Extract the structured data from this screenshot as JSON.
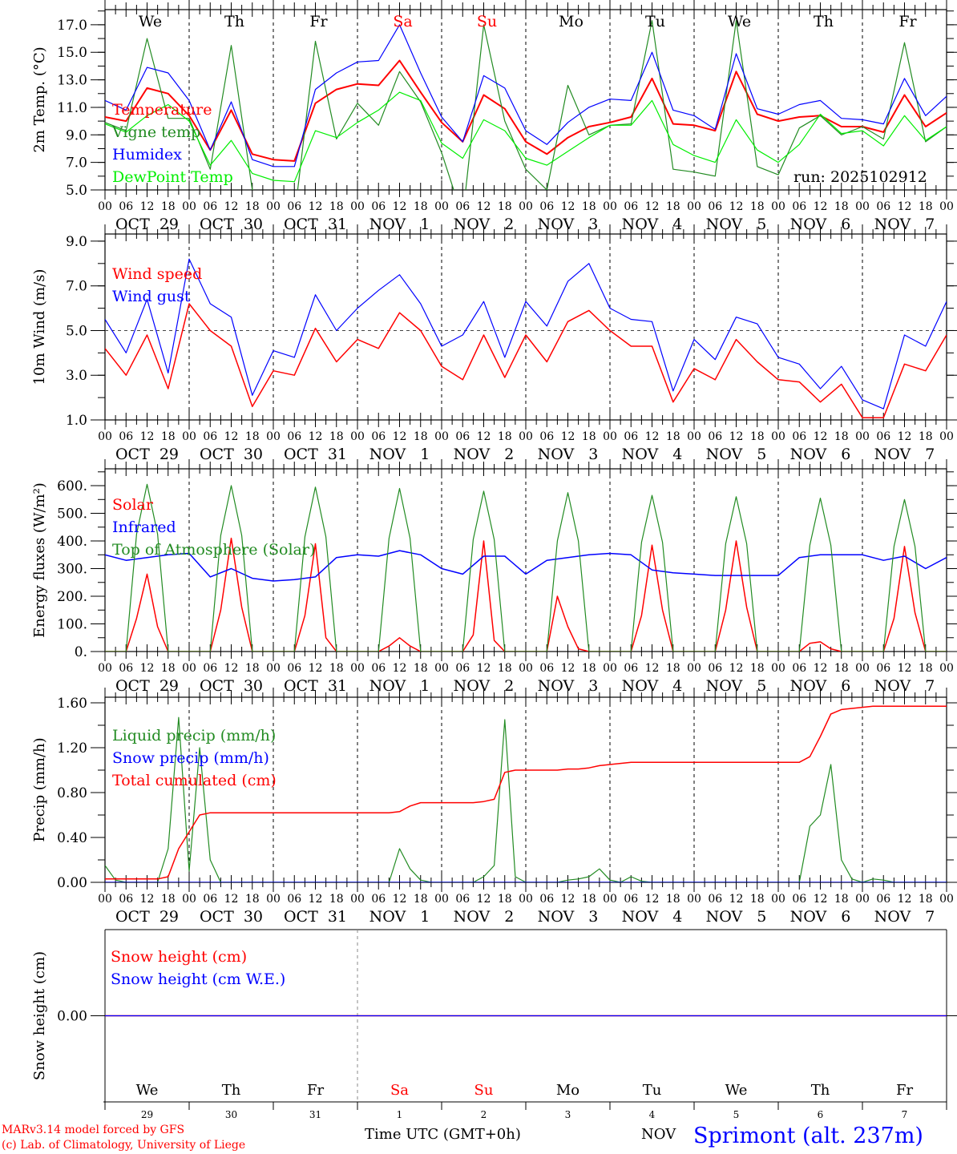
{
  "colors": {
    "red": "#ff0000",
    "green": "#228b22",
    "blue": "#0000ff",
    "lime": "#00ee00",
    "black": "#000000"
  },
  "axis": {
    "hour_labels": [
      "00",
      "06",
      "12",
      "18"
    ],
    "dates": [
      "OCT  29",
      "OCT  30",
      "OCT  31",
      "NOV   1",
      "NOV   2",
      "NOV   3",
      "NOV   4",
      "NOV   5",
      "NOV   6",
      "NOV   7"
    ],
    "day_names": [
      "We",
      "Th",
      "Fr",
      "Sa",
      "Su",
      "Mo",
      "Tu",
      "We",
      "Th",
      "Fr"
    ],
    "weekend": [
      false,
      false,
      false,
      true,
      true,
      false,
      false,
      false,
      false,
      false
    ],
    "day_numbers": [
      "29",
      "30",
      "31",
      "1",
      "2",
      "3",
      "4",
      "5",
      "6",
      "7"
    ],
    "xlabel": "Time UTC (GMT+0h)",
    "month_fragment": "NOV"
  },
  "footer": {
    "model": "MARv3.14 model forced by GFS",
    "credit": "(c) Lab. of Climatology, University of Liege",
    "station": "Sprimont (alt. 237m)"
  },
  "chart_data": [
    {
      "type": "line",
      "id": "temp",
      "ylabel": "2m Temp. (°C)",
      "ylim": [
        5,
        18.1
      ],
      "yticks": [
        "5.0",
        "7.0",
        "9.0",
        "11.0",
        "13.0",
        "15.0",
        "17.0"
      ],
      "x_step_hours": 6,
      "annotation": "run: 2025102912",
      "series": [
        {
          "name": "Temperature",
          "color": "#ff0000",
          "width": 2,
          "values": [
            10.3,
            10.0,
            12.4,
            12.0,
            10.4,
            7.9,
            10.8,
            7.6,
            7.2,
            7.1,
            11.3,
            12.3,
            12.7,
            12.6,
            14.4,
            12.1,
            9.9,
            8.5,
            11.9,
            10.9,
            8.5,
            7.6,
            8.8,
            9.6,
            9.9,
            10.3,
            13.1,
            9.8,
            9.7,
            9.3,
            13.6,
            10.5,
            10.0,
            10.3,
            10.4,
            9.6,
            9.6,
            9.2,
            11.9,
            9.6,
            10.6
          ]
        },
        {
          "name": "Vigne temp",
          "color": "#228b22",
          "width": 1.2,
          "values": [
            9.9,
            9.3,
            16.0,
            10.2,
            10.2,
            6.5,
            15.5,
            5.0,
            4.5,
            3.0,
            15.8,
            8.7,
            11.3,
            9.7,
            13.6,
            11.4,
            7.7,
            3.0,
            17.0,
            10.0,
            6.5,
            5.0,
            12.6,
            9.0,
            9.7,
            9.8,
            17.3,
            6.5,
            6.3,
            6.0,
            17.3,
            6.7,
            6.1,
            9.5,
            10.4,
            9.0,
            9.6,
            8.7,
            15.7,
            8.5,
            9.6
          ]
        },
        {
          "name": "Humidex",
          "color": "#0000ff",
          "width": 1.2,
          "values": [
            11.5,
            10.8,
            13.9,
            13.5,
            11.5,
            7.9,
            11.4,
            7.2,
            6.7,
            6.7,
            12.3,
            13.5,
            14.3,
            14.4,
            17.0,
            13.5,
            10.3,
            8.5,
            13.3,
            12.4,
            9.3,
            8.3,
            9.9,
            11.0,
            11.6,
            11.5,
            15.0,
            10.8,
            10.4,
            9.4,
            14.9,
            10.9,
            10.5,
            11.2,
            11.5,
            10.2,
            10.1,
            9.8,
            13.1,
            10.4,
            11.8
          ]
        },
        {
          "name": "DewPoint Temp",
          "color": "#00ee00",
          "width": 1.2,
          "values": [
            9.8,
            9.2,
            10.4,
            11.2,
            10.0,
            6.8,
            8.6,
            6.2,
            5.7,
            5.6,
            9.3,
            8.8,
            9.9,
            10.8,
            12.1,
            11.5,
            8.4,
            7.3,
            10.1,
            9.3,
            7.3,
            6.8,
            7.8,
            8.8,
            9.7,
            9.7,
            11.5,
            8.3,
            7.5,
            7.0,
            10.1,
            7.9,
            7.0,
            8.3,
            10.5,
            9.1,
            9.3,
            8.2,
            10.4,
            8.6,
            9.6
          ]
        }
      ]
    },
    {
      "type": "line",
      "id": "wind",
      "ylabel": "10m Wind (m/s)",
      "ylim": [
        1,
        9.32
      ],
      "yticks": [
        "1.0",
        "3.0",
        "5.0",
        "7.0",
        "9.0"
      ],
      "x_step_hours": 6,
      "hline": 5,
      "series": [
        {
          "name": "Wind speed",
          "color": "#ff0000",
          "width": 1.5,
          "values": [
            4.2,
            3.0,
            4.8,
            2.4,
            6.2,
            5.0,
            4.3,
            1.6,
            3.2,
            3.0,
            5.1,
            3.6,
            4.6,
            4.2,
            5.8,
            5.0,
            3.4,
            2.8,
            4.8,
            2.9,
            4.8,
            3.6,
            5.4,
            5.9,
            5.0,
            4.3,
            4.3,
            1.8,
            3.3,
            2.8,
            4.6,
            3.6,
            2.8,
            2.7,
            1.8,
            2.6,
            1.1,
            1.1,
            3.5,
            3.2,
            4.8
          ]
        },
        {
          "name": "Wind gust",
          "color": "#0000ff",
          "width": 1.2,
          "values": [
            5.5,
            4.0,
            6.4,
            3.1,
            8.2,
            6.2,
            5.6,
            2.1,
            4.1,
            3.8,
            6.6,
            5.0,
            6.0,
            6.8,
            7.5,
            6.2,
            4.3,
            4.8,
            6.3,
            3.8,
            6.3,
            5.2,
            7.2,
            8.0,
            6.0,
            5.5,
            5.4,
            2.3,
            4.6,
            3.7,
            5.6,
            5.3,
            3.8,
            3.5,
            2.4,
            3.4,
            1.9,
            1.5,
            4.8,
            4.3,
            6.3
          ]
        }
      ]
    },
    {
      "type": "line",
      "id": "energy",
      "ylabel": "Energy fluxes (W/m²)",
      "ylim": [
        0,
        661
      ],
      "yticks": [
        "0.",
        "100.",
        "200.",
        "300.",
        "400.",
        "500.",
        "600."
      ],
      "x_step_hours": 3,
      "series": [
        {
          "name": "Solar",
          "color": "#ff0000",
          "width": 1.5,
          "step": 3,
          "values": [
            0,
            0,
            0,
            120,
            280,
            90,
            0,
            0,
            0,
            0,
            0,
            150,
            410,
            160,
            0,
            0,
            0,
            0,
            0,
            130,
            390,
            50,
            0,
            0,
            0,
            0,
            0,
            20,
            50,
            20,
            0,
            0,
            0,
            0,
            0,
            60,
            400,
            40,
            0,
            0,
            0,
            0,
            0,
            200,
            90,
            10,
            0,
            0,
            0,
            0,
            0,
            130,
            385,
            150,
            0,
            0,
            0,
            0,
            0,
            150,
            400,
            160,
            0,
            0,
            0,
            0,
            0,
            30,
            35,
            10,
            0,
            0,
            0,
            0,
            0,
            120,
            380,
            140,
            0,
            0,
            0
          ]
        },
        {
          "name": "Infrared",
          "color": "#0000ff",
          "width": 1.5,
          "step": 6,
          "values": [
            350,
            330,
            340,
            350,
            355,
            270,
            300,
            265,
            255,
            260,
            270,
            340,
            350,
            345,
            365,
            350,
            300,
            280,
            345,
            345,
            280,
            330,
            340,
            350,
            355,
            350,
            295,
            285,
            280,
            275,
            275,
            275,
            275,
            340,
            350,
            350,
            350,
            330,
            345,
            300,
            340
          ]
        },
        {
          "name": "Top of Atmosphere (Solar)",
          "color": "#228b22",
          "width": 1.2,
          "step": 3,
          "values": [
            0,
            0,
            0,
            425,
            605,
            425,
            0,
            0,
            0,
            0,
            0,
            420,
            600,
            420,
            0,
            0,
            0,
            0,
            0,
            415,
            595,
            415,
            0,
            0,
            0,
            0,
            0,
            410,
            590,
            410,
            0,
            0,
            0,
            0,
            0,
            405,
            580,
            405,
            0,
            0,
            0,
            0,
            0,
            400,
            575,
            400,
            0,
            0,
            0,
            0,
            0,
            395,
            565,
            395,
            0,
            0,
            0,
            0,
            0,
            390,
            560,
            390,
            0,
            0,
            0,
            0,
            0,
            385,
            555,
            385,
            0,
            0,
            0,
            0,
            0,
            380,
            550,
            380,
            0,
            0,
            0
          ]
        }
      ]
    },
    {
      "type": "line",
      "id": "precip",
      "ylabel": "Precip (mm/h)",
      "ylim": [
        0,
        1.65
      ],
      "yticks": [
        "0.00",
        "0.40",
        "0.80",
        "1.20",
        "1.60"
      ],
      "x_step_hours": 3,
      "series": [
        {
          "name": "Liquid precip (mm/h)",
          "color": "#228b22",
          "width": 1.2,
          "values": [
            0.15,
            0.02,
            0,
            0,
            0,
            0,
            0.3,
            1.47,
            0.1,
            1.2,
            0.2,
            0,
            0,
            0,
            0,
            0,
            0,
            0,
            0,
            0,
            0,
            0,
            0,
            0,
            0,
            0,
            0,
            0,
            0.3,
            0.12,
            0.02,
            0,
            0,
            0,
            0,
            0,
            0.05,
            0.15,
            1.45,
            0.05,
            0,
            0,
            0,
            0,
            0.02,
            0.03,
            0.05,
            0.12,
            0.02,
            0,
            0.05,
            0.01,
            0,
            0,
            0,
            0,
            0,
            0,
            0,
            0,
            0,
            0,
            0,
            0,
            0,
            0,
            0,
            0.5,
            0.6,
            1.05,
            0.2,
            0.03,
            0,
            0.03,
            0.02,
            0,
            0,
            0,
            0,
            0,
            0
          ]
        },
        {
          "name": "Snow precip (mm/h)",
          "color": "#0000ff",
          "width": 1.2,
          "values": [
            0,
            0,
            0,
            0,
            0,
            0,
            0,
            0,
            0,
            0,
            0,
            0,
            0,
            0,
            0,
            0,
            0,
            0,
            0,
            0,
            0,
            0,
            0,
            0,
            0,
            0,
            0,
            0,
            0,
            0,
            0,
            0,
            0,
            0,
            0,
            0,
            0,
            0,
            0,
            0,
            0,
            0,
            0,
            0,
            0,
            0,
            0,
            0,
            0,
            0,
            0,
            0,
            0,
            0,
            0,
            0,
            0,
            0,
            0,
            0,
            0,
            0,
            0,
            0,
            0,
            0,
            0,
            0,
            0,
            0,
            0,
            0,
            0,
            0,
            0,
            0,
            0,
            0,
            0,
            0,
            0
          ]
        },
        {
          "name": "Total cumulated (cm)",
          "color": "#ff0000",
          "width": 1.5,
          "values": [
            0.03,
            0.03,
            0.03,
            0.03,
            0.03,
            0.03,
            0.05,
            0.3,
            0.45,
            0.6,
            0.62,
            0.62,
            0.62,
            0.62,
            0.62,
            0.62,
            0.62,
            0.62,
            0.62,
            0.62,
            0.62,
            0.62,
            0.62,
            0.62,
            0.62,
            0.62,
            0.62,
            0.62,
            0.63,
            0.68,
            0.71,
            0.71,
            0.71,
            0.71,
            0.71,
            0.71,
            0.72,
            0.74,
            0.98,
            1.0,
            1.0,
            1.0,
            1.0,
            1.0,
            1.01,
            1.01,
            1.02,
            1.04,
            1.05,
            1.06,
            1.07,
            1.07,
            1.07,
            1.07,
            1.07,
            1.07,
            1.07,
            1.07,
            1.07,
            1.07,
            1.07,
            1.07,
            1.07,
            1.07,
            1.07,
            1.07,
            1.07,
            1.12,
            1.3,
            1.5,
            1.54,
            1.55,
            1.56,
            1.57,
            1.57,
            1.57,
            1.57,
            1.57,
            1.57,
            1.57,
            1.57
          ]
        }
      ]
    },
    {
      "type": "line",
      "id": "snow",
      "ylabel": "Snow height (cm)",
      "ylim": [
        -1,
        1
      ],
      "yticks": [
        "0.00"
      ],
      "x_step_hours": 240,
      "series": [
        {
          "name": "Snow height (cm)",
          "color": "#ff0000",
          "width": 1.5,
          "values": [
            0,
            0
          ]
        },
        {
          "name": "Snow height (cm W.E.)",
          "color": "#0000ff",
          "width": 1.2,
          "values": [
            0,
            0
          ]
        }
      ]
    }
  ]
}
